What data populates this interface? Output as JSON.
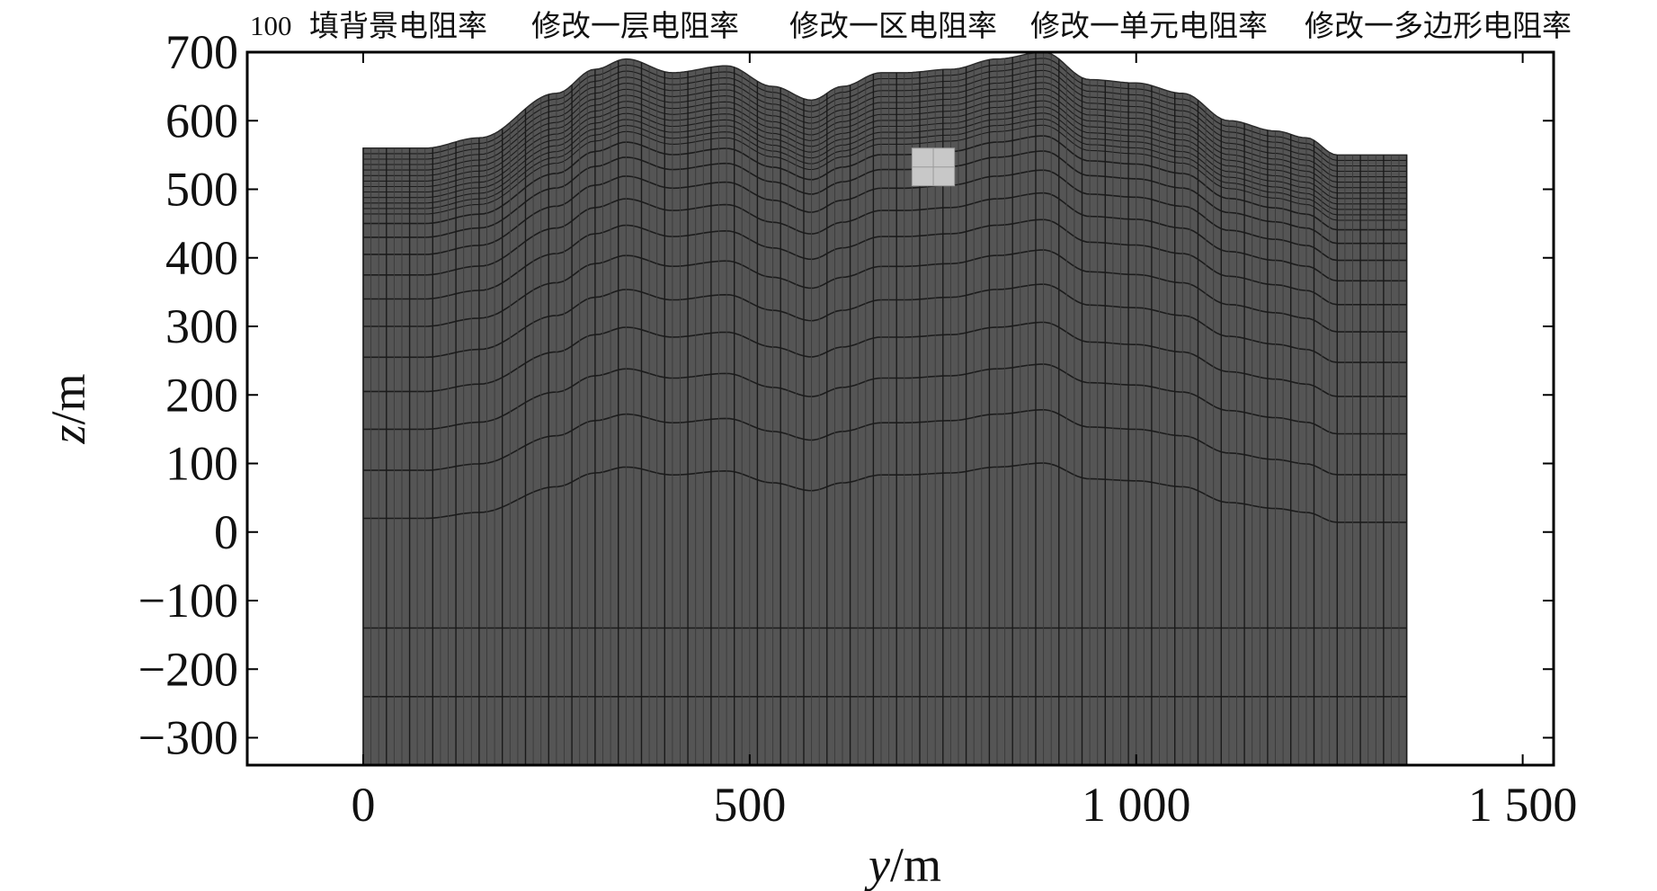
{
  "toolbar": {
    "value": "100",
    "buttons": [
      "填背景电阻率",
      "修改一层电阻率",
      "修改一区电阻率",
      "修改一单元电阻率",
      "修改一多边形电阻率"
    ]
  },
  "chart_data": {
    "type": "mesh",
    "xlabel_var": "y",
    "xlabel_unit": "/m",
    "ylabel_var": "z",
    "ylabel_unit": "/m",
    "xlim": [
      -150,
      1540
    ],
    "ylim": [
      -340,
      700
    ],
    "x_ticks": [
      0,
      500,
      1000,
      1500
    ],
    "x_tick_labels": [
      "0",
      "500",
      "1 000",
      "1 500"
    ],
    "y_ticks": [
      700,
      600,
      500,
      400,
      300,
      200,
      100,
      0,
      -100,
      -200,
      -300
    ],
    "y_tick_labels": [
      "700",
      "600",
      "500",
      "400",
      "300",
      "200",
      "100",
      "0",
      "−100",
      "−200",
      "−300"
    ],
    "mesh_x_range": [
      0,
      1350
    ],
    "mesh_bottom": -340,
    "surface_profile": {
      "x": [
        0,
        80,
        150,
        250,
        300,
        340,
        400,
        470,
        530,
        580,
        620,
        670,
        700,
        760,
        820,
        880,
        940,
        1000,
        1060,
        1120,
        1180,
        1220,
        1260,
        1350
      ],
      "z": [
        560,
        560,
        575,
        640,
        675,
        690,
        670,
        680,
        650,
        630,
        650,
        670,
        670,
        675,
        690,
        700,
        660,
        655,
        640,
        600,
        585,
        575,
        550,
        550
      ]
    },
    "highlighted_cells": {
      "x": [
        710,
        765
      ],
      "z": [
        505,
        560
      ]
    },
    "mesh_color": "#555555",
    "line_color": "#1c1c1c",
    "highlight_color": "#c8c8c8"
  }
}
